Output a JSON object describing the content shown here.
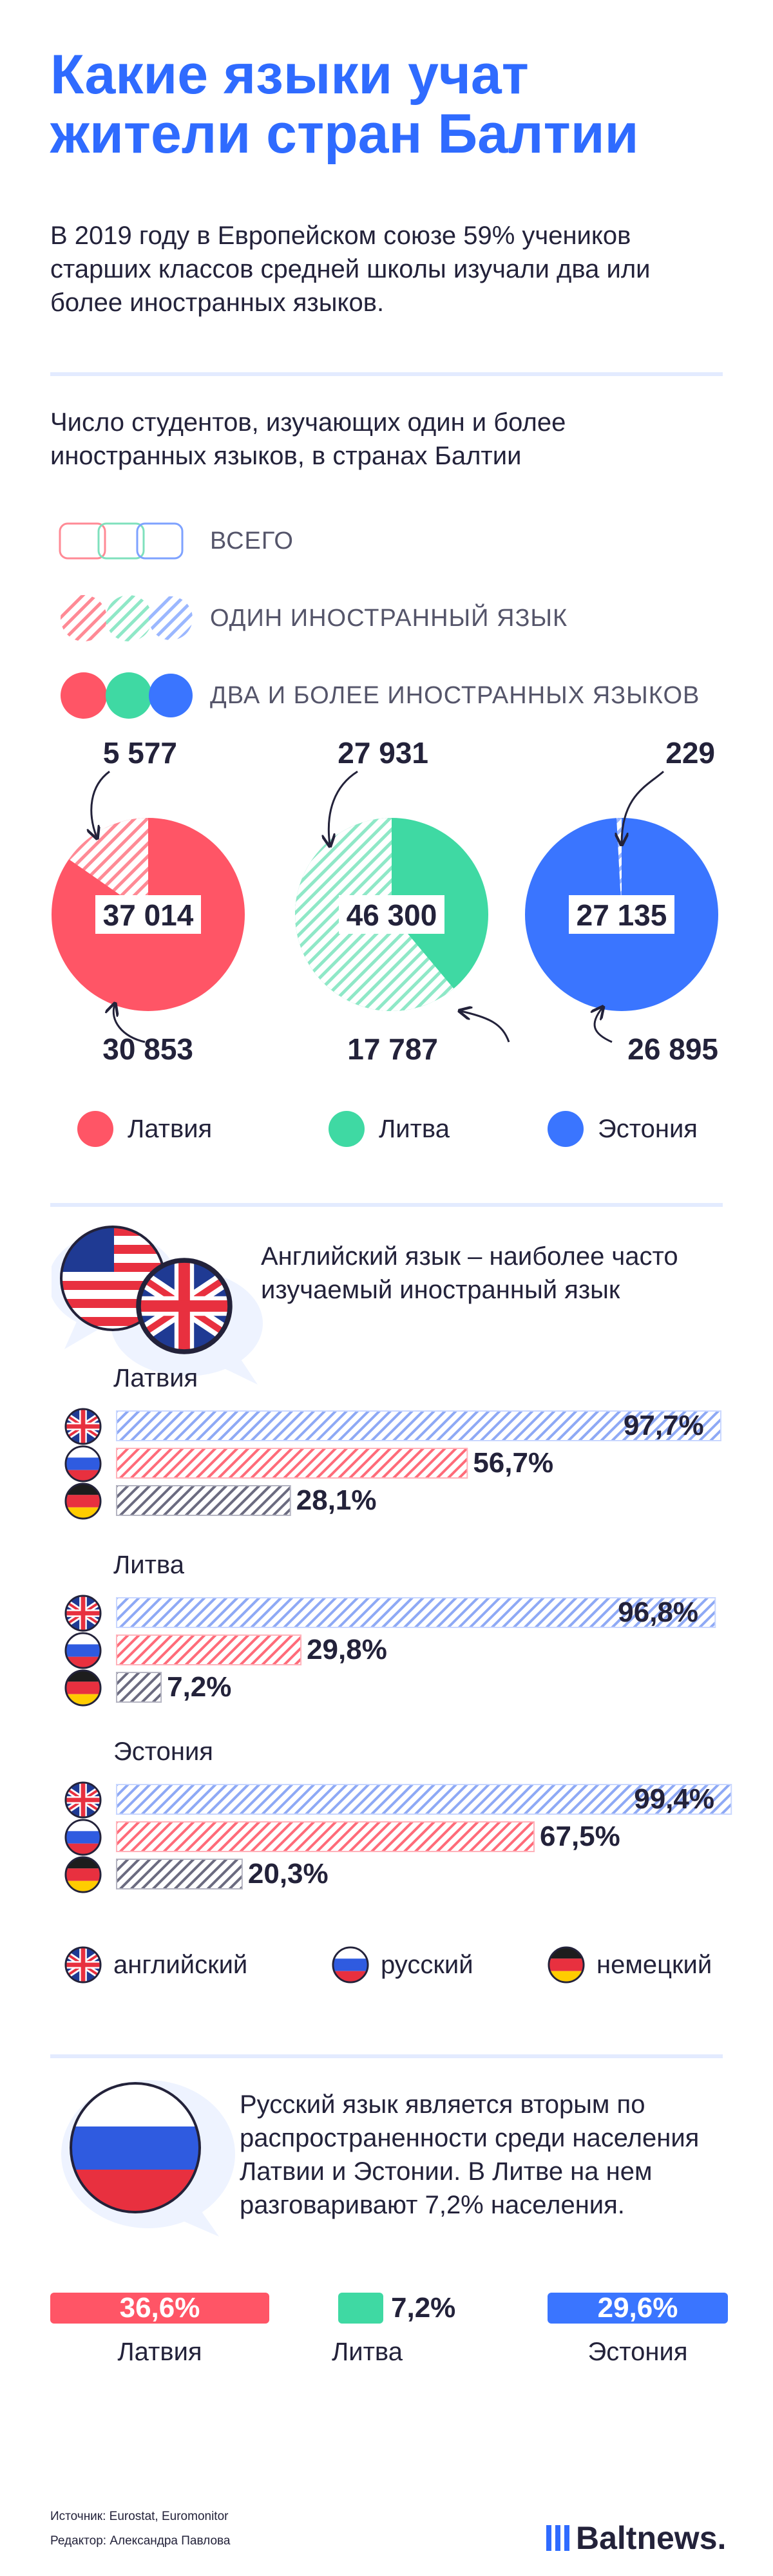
{
  "title": "Какие языки учат жители стран Балтии",
  "intro": "В 2019 году в Европейском союзе 59% учеников старших классов средней школы изучали два или более иностранных языков.",
  "students_section": {
    "heading": "Число студентов, изучающих один и более иностранных языков, в странах Балтии",
    "legend": [
      {
        "label": "ВСЕГО",
        "style": "outline"
      },
      {
        "label": "ОДИН ИНОСТРАННЫЙ ЯЗЫК",
        "style": "hatched"
      },
      {
        "label": "ДВА И БОЛЕЕ ИНОСТРАННЫХ ЯЗЫКОВ",
        "style": "solid"
      }
    ],
    "countries_legend": [
      {
        "label": "Латвия",
        "color": "#ff5566"
      },
      {
        "label": "Литва",
        "color": "#3fd9a3"
      },
      {
        "label": "Эстония",
        "color": "#3a75ff"
      }
    ]
  },
  "chart_data": [
    {
      "type": "pie",
      "title": "",
      "series": [
        {
          "name": "Латвия",
          "total": "37 014",
          "one_language": "5 577",
          "two_or_more": "30 853",
          "values": [
            5577,
            30853
          ],
          "color": "#ff5566"
        },
        {
          "name": "Литва",
          "total": "46 300",
          "one_language": "27 931",
          "two_or_more": "17 787",
          "values": [
            27931,
            17787
          ],
          "color": "#3fd9a3"
        },
        {
          "name": "Эстония",
          "total": "27 135",
          "one_language": "229",
          "two_or_more": "26 895",
          "values": [
            229,
            26895
          ],
          "color": "#3a75ff"
        }
      ]
    },
    {
      "type": "bar",
      "title": "Английский язык – наиболее часто изучаемый иностранный язык",
      "categories": [
        "английский",
        "русский",
        "немецкий"
      ],
      "xlim": [
        0,
        100
      ],
      "groups": [
        {
          "name": "Латвия",
          "values": [
            97.7,
            56.7,
            28.1
          ],
          "labels": [
            "97,7%",
            "56,7%",
            "28,1%"
          ]
        },
        {
          "name": "Литва",
          "values": [
            96.8,
            29.8,
            7.2
          ],
          "labels": [
            "96,8%",
            "29,8%",
            "7,2%"
          ]
        },
        {
          "name": "Эстония",
          "values": [
            99.4,
            67.5,
            20.3
          ],
          "labels": [
            "99,4%",
            "67,5%",
            "20,3%"
          ]
        }
      ],
      "colors": {
        "английский": "#3a75ff",
        "русский": "#ff5566",
        "немецкий": "#23223a"
      }
    },
    {
      "type": "bar",
      "title": "",
      "categories": [
        "Латвия",
        "Литва",
        "Эстония"
      ],
      "values": [
        36.6,
        7.2,
        29.6
      ],
      "labels": [
        "36,6%",
        "7,2%",
        "29,6%"
      ],
      "colors": [
        "#ff5566",
        "#3fd9a3",
        "#3a75ff"
      ]
    }
  ],
  "languages_section": {
    "heading": "Английский язык – наиболее часто изучаемый иностранный язык",
    "legend": [
      {
        "label": "английский",
        "icon": "uk-flag-icon"
      },
      {
        "label": "русский",
        "icon": "russia-flag-icon"
      },
      {
        "label": "немецкий",
        "icon": "germany-flag-icon"
      }
    ]
  },
  "russian_section": {
    "text": "Русский язык является вторым по распространенности среди населения Латвии и Эстонии. В Литве на нем разговаривают 7,2% населения."
  },
  "footer": {
    "source": "Источник: Eurostat, Euromonitor",
    "editor": "Редактор: Александра Павлова",
    "logo": "Baltnews."
  }
}
